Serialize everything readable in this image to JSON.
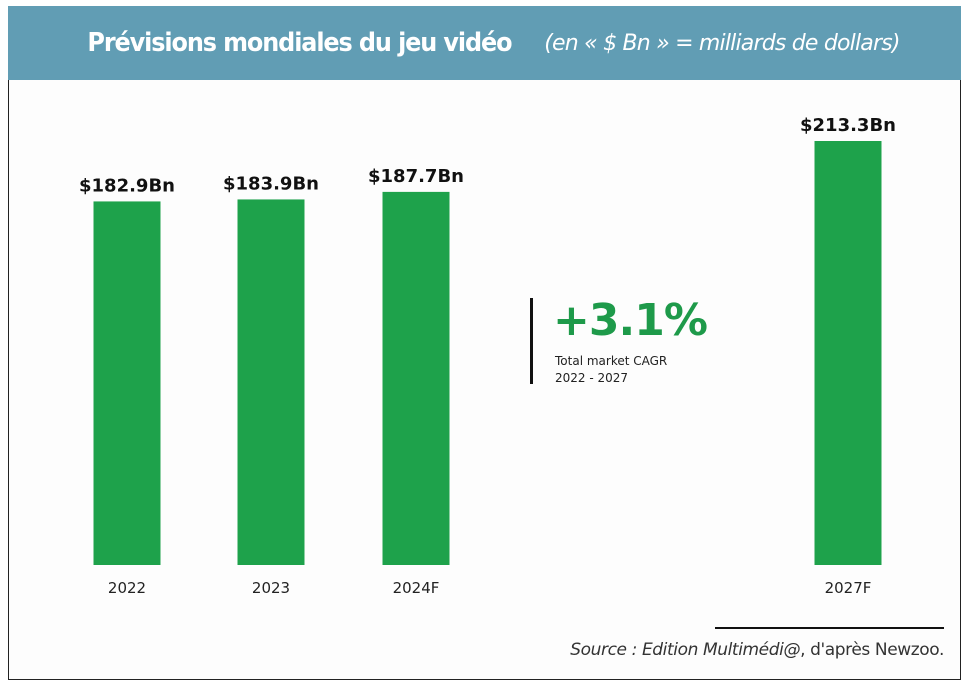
{
  "header": {
    "title": "Prévisions mondiales du jeu vidéo",
    "subtitle": "(en « $ Bn » = milliards de dollars)"
  },
  "colors": {
    "header_bg": "#619db4",
    "bar": "#1ea24b",
    "accent_green": "#1e9a4a"
  },
  "cagr": {
    "value": "+3.1%",
    "label_line1": "Total market CAGR",
    "label_line2": "2022 - 2027"
  },
  "source": {
    "italic_part": "Source : Edition Multimédi@",
    "plain_part": ", d'après Newzoo."
  },
  "chart_data": {
    "type": "bar",
    "title": "Prévisions mondiales du jeu vidéo",
    "subtitle": "(en « $ Bn » = milliards de dollars)",
    "categories": [
      "2022",
      "2023",
      "2024F",
      "2027F"
    ],
    "values": [
      182.9,
      183.9,
      187.7,
      213.3
    ],
    "data_labels": [
      "$182.9Bn",
      "$183.9Bn",
      "$187.7Bn",
      "$213.3Bn"
    ],
    "unit": "$ Bn",
    "xlabel": "",
    "ylabel": "",
    "ylim": [
      0,
      213.3
    ],
    "grid": false,
    "legend": "none",
    "annotation": "+3.1% Total market CAGR 2022 - 2027"
  }
}
